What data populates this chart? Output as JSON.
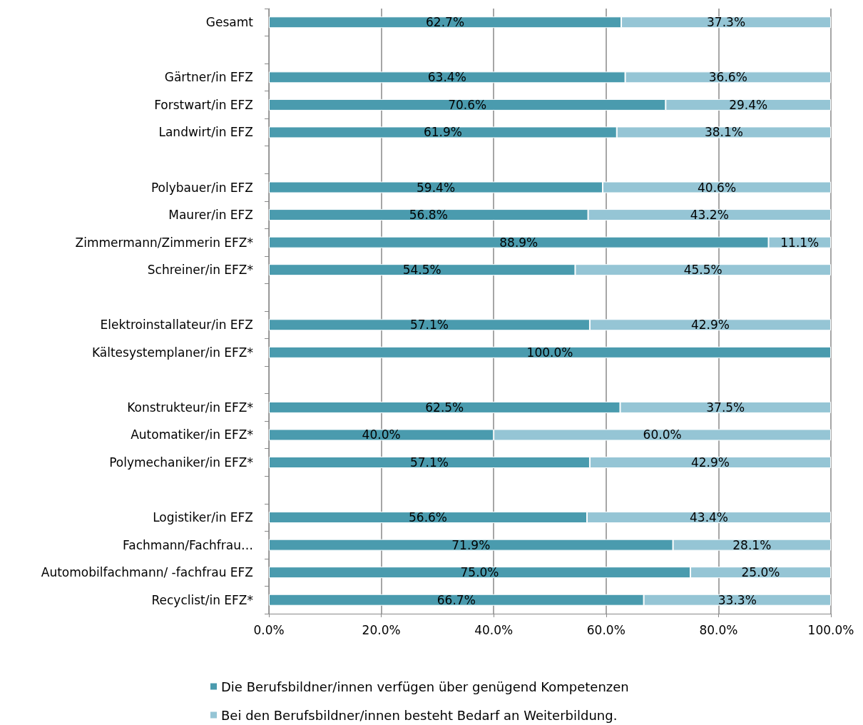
{
  "chart_data": {
    "type": "bar",
    "orientation": "horizontal",
    "stacked": true,
    "categories": [
      "Gesamt",
      null,
      "Gärtner/in EFZ",
      "Forstwart/in EFZ",
      "Landwirt/in EFZ",
      null,
      "Polybauer/in EFZ",
      "Maurer/in EFZ",
      "Zimmermann/Zimmerin EFZ*",
      "Schreiner/in EFZ*",
      null,
      "Elektroinstallateur/in EFZ",
      "Kältesystemplaner/in EFZ*",
      null,
      "Konstrukteur/in EFZ*",
      "Automatiker/in EFZ*",
      "Polymechaniker/in EFZ*",
      null,
      "Logistiker/in EFZ",
      "Fachmann/Fachfrau…",
      "Automobilfachmann/ -fachfrau EFZ",
      "Recyclist/in EFZ*"
    ],
    "series": [
      {
        "name": "Die Berufsbildner/innen verfügen über genügend Kompetenzen",
        "color": "#4a9bae",
        "values": [
          62.7,
          null,
          63.4,
          70.6,
          61.9,
          null,
          59.4,
          56.8,
          88.9,
          54.5,
          null,
          57.1,
          100.0,
          null,
          62.5,
          40.0,
          57.1,
          null,
          56.6,
          71.9,
          75.0,
          66.7
        ],
        "value_labels": [
          "62.7%",
          null,
          "63.4%",
          "70.6%",
          "61.9%",
          null,
          "59.4%",
          "56.8%",
          "88.9%",
          "54.5%",
          null,
          "57.1%",
          "100.0%",
          null,
          "62.5%",
          "40.0%",
          "57.1%",
          null,
          "56.6%",
          "71.9%",
          "75.0%",
          "66.7%"
        ]
      },
      {
        "name": "Bei den Berufsbildner/innen besteht Bedarf an Weiterbildung.",
        "color": "#95c5d5",
        "values": [
          37.3,
          null,
          36.6,
          29.4,
          38.1,
          null,
          40.6,
          43.2,
          11.1,
          45.5,
          null,
          42.9,
          null,
          null,
          37.5,
          60.0,
          42.9,
          null,
          43.4,
          28.1,
          25.0,
          33.3
        ],
        "value_labels": [
          "37.3%",
          null,
          "36.6%",
          "29.4%",
          "38.1%",
          null,
          "40.6%",
          "43.2%",
          "11.1%",
          "45.5%",
          null,
          "42.9%",
          null,
          null,
          "37.5%",
          "60.0%",
          "42.9%",
          null,
          "43.4%",
          "28.1%",
          "25.0%",
          "33.3%"
        ]
      }
    ],
    "xlim": [
      0,
      100
    ],
    "xticks": [
      {
        "value": 0,
        "label": "0.0%"
      },
      {
        "value": 20,
        "label": "20.0%"
      },
      {
        "value": 40,
        "label": "40.0%"
      },
      {
        "value": 60,
        "label": "60.0%"
      },
      {
        "value": 80,
        "label": "80.0%"
      },
      {
        "value": 100,
        "label": "100.0%"
      }
    ],
    "grid": "x",
    "legend": "bottom"
  }
}
